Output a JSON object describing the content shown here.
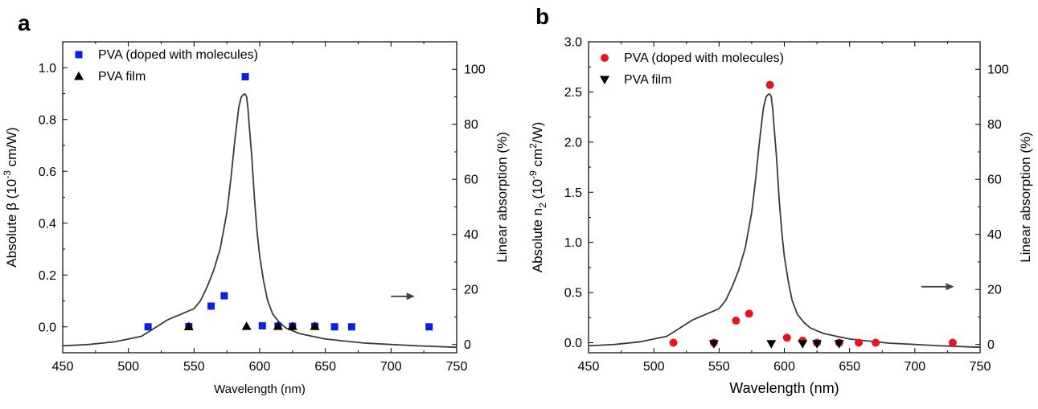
{
  "chart_data": [
    {
      "panel_label": "a",
      "type": "scatter",
      "xlabel": "Wavelength (nm)",
      "ylabel_left": {
        "main": "Absolute β (10",
        "sup": "-3",
        "rest": " cm/W)"
      },
      "ylabel_right": "Linear absorption (%)",
      "xlim": [
        450,
        750
      ],
      "ylim_left": [
        -0.1,
        1.1
      ],
      "ylim_right": [
        -3,
        110
      ],
      "xticks": [
        450,
        500,
        550,
        600,
        650,
        700,
        750
      ],
      "yticks_left": [
        0.0,
        0.2,
        0.4,
        0.6,
        0.8,
        1.0
      ],
      "yticks_left_labels": [
        "0.0",
        "0.2",
        "0.4",
        "0.6",
        "0.8",
        "1.0"
      ],
      "yticks_right": [
        0,
        20,
        40,
        60,
        80,
        100
      ],
      "legend": [
        {
          "label": "PVA (doped with molecules)",
          "marker": "square",
          "color": "#0b1fe8"
        },
        {
          "label": "PVA film",
          "marker": "triangle-up",
          "color": "#000000"
        }
      ],
      "series": [
        {
          "name": "PVA (doped with molecules)",
          "axis": "left",
          "marker": "square",
          "color": "#0b1fe8",
          "x": [
            515,
            546,
            563,
            573,
            589,
            602,
            614,
            625,
            642,
            657,
            670,
            729
          ],
          "y": [
            0.0,
            0.001,
            0.08,
            0.12,
            0.965,
            0.004,
            0.003,
            0.002,
            0.002,
            0.0,
            0.0,
            0.0
          ]
        },
        {
          "name": "PVA film",
          "axis": "left",
          "marker": "triangle-up",
          "color": "#000000",
          "x": [
            546,
            590,
            614,
            625,
            642
          ],
          "y": [
            0.001,
            0.002,
            0.002,
            0.002,
            0.002
          ]
        },
        {
          "name": "Linear absorption",
          "axis": "right",
          "marker": "line",
          "color": "#3a3a3a",
          "x": [
            450,
            470,
            490,
            510,
            520,
            530,
            540,
            550,
            555,
            560,
            565,
            570,
            575,
            578,
            581,
            584,
            586,
            588,
            589,
            590,
            591,
            592,
            594,
            596,
            598,
            600,
            603,
            606,
            610,
            615,
            620,
            630,
            640,
            650,
            660,
            680,
            700,
            720,
            750
          ],
          "y": [
            -0.5,
            0,
            1,
            3,
            6,
            9,
            11,
            13,
            16,
            21,
            27,
            35,
            48,
            60,
            74,
            86,
            90,
            91,
            91,
            90,
            86,
            80,
            68,
            53,
            41,
            32,
            23,
            16,
            11,
            8,
            6,
            4,
            3,
            2,
            1.5,
            0.5,
            0,
            -0.5,
            -1
          ]
        }
      ],
      "annotation": {
        "type": "arrow",
        "direction": "right",
        "x": [
          700,
          718
        ],
        "y_right": 17.5
      }
    },
    {
      "panel_label": "b",
      "type": "scatter",
      "xlabel": "Wavelength (nm)",
      "ylabel_left": {
        "main": "Absolute n",
        "sub": "2",
        "mid": " (10",
        "sup": "-9",
        "mid2": " cm",
        "sup2": "2",
        "rest": "/W)"
      },
      "ylabel_right": "Linear absorption (%)",
      "xlim": [
        450,
        750
      ],
      "ylim_left": [
        -0.1,
        3.0
      ],
      "ylim_right": [
        -3,
        110
      ],
      "xticks": [
        450,
        500,
        550,
        600,
        650,
        700,
        750
      ],
      "yticks_left": [
        0.0,
        0.5,
        1.0,
        1.5,
        2.0,
        2.5,
        3.0
      ],
      "yticks_left_labels": [
        "0.0",
        "0.5",
        "1.0",
        "1.5",
        "2.0",
        "2.5",
        "3.0"
      ],
      "yticks_right": [
        0,
        20,
        40,
        60,
        80,
        100
      ],
      "legend": [
        {
          "label": "PVA (doped with molecules)",
          "marker": "circle",
          "color": "#e8141b"
        },
        {
          "label": "PVA film",
          "marker": "triangle-down",
          "color": "#000000"
        }
      ],
      "series": [
        {
          "name": "PVA (doped with molecules)",
          "axis": "left",
          "marker": "circle",
          "color": "#e8141b",
          "x": [
            515,
            546,
            563,
            573,
            589,
            602,
            614,
            625,
            642,
            657,
            670,
            729
          ],
          "y": [
            0.0,
            0.0,
            0.22,
            0.29,
            2.57,
            0.05,
            0.02,
            0.0,
            0.0,
            0.0,
            0.0,
            0.0
          ]
        },
        {
          "name": "PVA film",
          "axis": "left",
          "marker": "triangle-down",
          "color": "#000000",
          "x": [
            546,
            590,
            614,
            625,
            642
          ],
          "y": [
            -0.01,
            -0.01,
            -0.01,
            -0.01,
            -0.01
          ]
        },
        {
          "name": "Linear absorption",
          "axis": "right",
          "marker": "line",
          "color": "#3a3a3a",
          "x": [
            450,
            470,
            490,
            510,
            520,
            530,
            540,
            550,
            555,
            560,
            565,
            570,
            575,
            578,
            581,
            584,
            586,
            588,
            589,
            590,
            591,
            592,
            594,
            596,
            598,
            600,
            603,
            606,
            610,
            615,
            620,
            630,
            640,
            650,
            660,
            680,
            700,
            720,
            750
          ],
          "y": [
            -0.5,
            0,
            1,
            3,
            6,
            9,
            11,
            13,
            16,
            21,
            27,
            35,
            48,
            60,
            74,
            86,
            90,
            91,
            91,
            90,
            86,
            80,
            68,
            53,
            41,
            32,
            23,
            16,
            11,
            8,
            6,
            4,
            3,
            2,
            1.5,
            0.5,
            0,
            -0.5,
            -1
          ]
        }
      ],
      "annotation": {
        "type": "arrow",
        "direction": "right",
        "x": [
          705,
          730
        ],
        "y_right": 21
      }
    }
  ]
}
